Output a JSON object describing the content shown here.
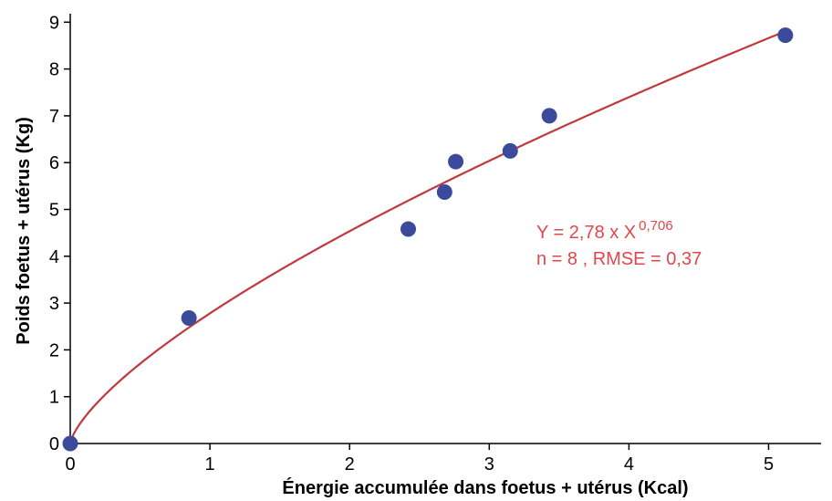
{
  "chart_data": {
    "type": "scatter",
    "xlabel": "Énergie accumulée dans foetus + utérus (Kcal)",
    "ylabel": "Poids foetus + utérus (Kg)",
    "xlim": [
      0,
      5.5
    ],
    "ylim": [
      0,
      9
    ],
    "xticks": [
      "0",
      "1",
      "2",
      "3",
      "4",
      "5"
    ],
    "yticks": [
      "0",
      "1",
      "2",
      "3",
      "4",
      "5",
      "6",
      "7",
      "8",
      "9"
    ],
    "grid": false,
    "series": [
      {
        "type": "scatter",
        "color": "#3b4a9a",
        "points": [
          {
            "x": 0,
            "y": 0
          },
          {
            "x": 0.85,
            "y": 2.68
          },
          {
            "x": 2.42,
            "y": 4.58
          },
          {
            "x": 2.68,
            "y": 5.37
          },
          {
            "x": 2.76,
            "y": 6.02
          },
          {
            "x": 3.15,
            "y": 6.25
          },
          {
            "x": 3.43,
            "y": 7.0
          },
          {
            "x": 5.12,
            "y": 8.72
          }
        ]
      },
      {
        "type": "line",
        "color": "#c0393f",
        "fit": {
          "model": "power",
          "a": 2.78,
          "b": 0.706,
          "x_range": [
            0,
            5.12
          ]
        }
      }
    ],
    "annotations": {
      "equation_main": "Y = 2,78  x X",
      "equation_exponent": "0,706",
      "stats": "n = 8 , RMSE = 0,37",
      "color": "#e0474c"
    }
  }
}
